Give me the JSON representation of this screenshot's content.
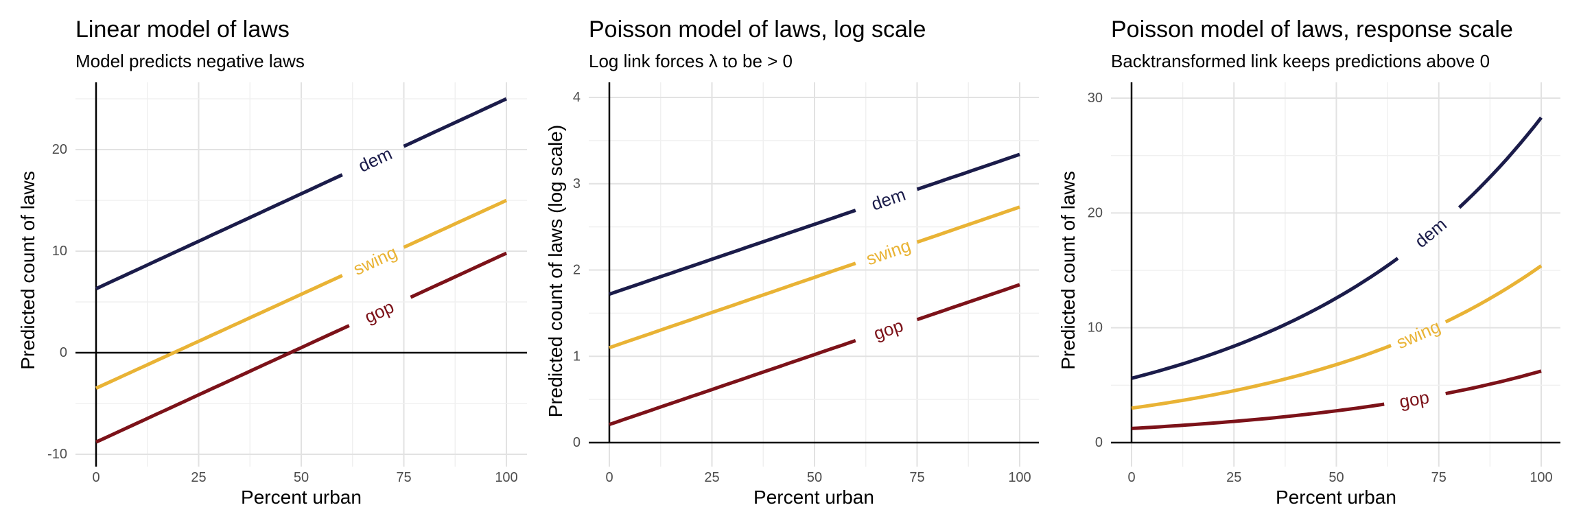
{
  "chart_data": [
    {
      "type": "line",
      "title": "Linear model of laws",
      "subtitle": "Model predicts negative laws",
      "xlabel": "Percent urban",
      "ylabel": "Predicted count of laws",
      "xlim": [
        0,
        100
      ],
      "ylim": [
        -10,
        25
      ],
      "xticks": [
        0,
        25,
        50,
        75,
        100
      ],
      "yticks": [
        -10,
        0,
        10,
        20
      ],
      "zero_line": true,
      "grid": true,
      "curve": "linear",
      "series": [
        {
          "name": "dem",
          "color": "#1b1c4a",
          "x": [
            0,
            100
          ],
          "y": [
            6.3,
            25.0
          ],
          "label_x": 68
        },
        {
          "name": "swing",
          "color": "#e9b335",
          "x": [
            0,
            100
          ],
          "y": [
            -3.5,
            15.0
          ],
          "label_x": 68
        },
        {
          "name": "gop",
          "color": "#7c1219",
          "x": [
            0,
            100
          ],
          "y": [
            -8.8,
            9.8
          ],
          "label_x": 69
        }
      ]
    },
    {
      "type": "line",
      "title": "Poisson model of laws, log scale",
      "subtitle": "Log link forces λ to be > 0",
      "xlabel": "Percent urban",
      "ylabel": "Predicted count of laws (log scale)",
      "xlim": [
        0,
        100
      ],
      "ylim": [
        0,
        4.2
      ],
      "xticks": [
        0,
        25,
        50,
        75,
        100
      ],
      "yticks": [
        0,
        1,
        2,
        3,
        4
      ],
      "zero_line": false,
      "grid": true,
      "curve": "linear",
      "series": [
        {
          "name": "dem",
          "color": "#1b1c4a",
          "x": [
            0,
            100
          ],
          "y": [
            1.72,
            3.34
          ],
          "label_x": 68
        },
        {
          "name": "swing",
          "color": "#e9b335",
          "x": [
            0,
            100
          ],
          "y": [
            1.1,
            2.73
          ],
          "label_x": 68
        },
        {
          "name": "gop",
          "color": "#7c1219",
          "x": [
            0,
            100
          ],
          "y": [
            0.21,
            1.83
          ],
          "label_x": 68
        }
      ]
    },
    {
      "type": "line",
      "title": "Poisson model of laws, response scale",
      "subtitle": "Backtransformed link keeps predictions above 0",
      "xlabel": "Percent urban",
      "ylabel": "Predicted count of laws",
      "xlim": [
        0,
        100
      ],
      "ylim": [
        0,
        30
      ],
      "xticks": [
        0,
        25,
        50,
        75,
        100
      ],
      "yticks": [
        0,
        10,
        20,
        30
      ],
      "zero_line": false,
      "grid": true,
      "curve": "exponential",
      "series": [
        {
          "name": "dem",
          "color": "#1b1c4a",
          "x": [
            0,
            100
          ],
          "y": [
            5.6,
            28.3
          ],
          "label_x": 73
        },
        {
          "name": "swing",
          "color": "#e9b335",
          "x": [
            0,
            100
          ],
          "y": [
            3.0,
            15.4
          ],
          "label_x": 70
        },
        {
          "name": "gop",
          "color": "#7c1219",
          "x": [
            0,
            100
          ],
          "y": [
            1.23,
            6.23
          ],
          "label_x": 69
        }
      ]
    }
  ]
}
